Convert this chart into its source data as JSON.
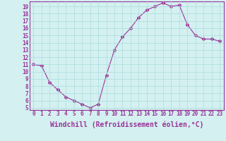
{
  "x": [
    0,
    1,
    2,
    3,
    4,
    5,
    6,
    7,
    8,
    9,
    10,
    11,
    12,
    13,
    14,
    15,
    16,
    17,
    18,
    19,
    20,
    21,
    22,
    23
  ],
  "y": [
    11.0,
    10.8,
    8.5,
    7.5,
    6.5,
    6.0,
    5.5,
    5.0,
    5.5,
    9.5,
    13.0,
    14.8,
    16.0,
    17.5,
    18.5,
    19.0,
    19.5,
    19.0,
    19.2,
    16.5,
    15.0,
    14.5,
    14.5,
    14.2
  ],
  "xlabel": "Windchill (Refroidissement éolien,°C)",
  "xlim_min": -0.5,
  "xlim_max": 23.5,
  "ylim_min": 4.7,
  "ylim_max": 19.7,
  "yticks": [
    5,
    6,
    7,
    8,
    9,
    10,
    11,
    12,
    13,
    14,
    15,
    16,
    17,
    18,
    19
  ],
  "xticks": [
    0,
    1,
    2,
    3,
    4,
    5,
    6,
    7,
    8,
    9,
    10,
    11,
    12,
    13,
    14,
    15,
    16,
    17,
    18,
    19,
    20,
    21,
    22,
    23
  ],
  "line_color": "#993399",
  "marker": "D",
  "marker_size": 2.5,
  "bg_color": "#d4f0f0",
  "grid_color": "#aadddd",
  "tick_label_fontsize": 5.5,
  "xlabel_fontsize": 7.0,
  "spine_color": "#993399"
}
